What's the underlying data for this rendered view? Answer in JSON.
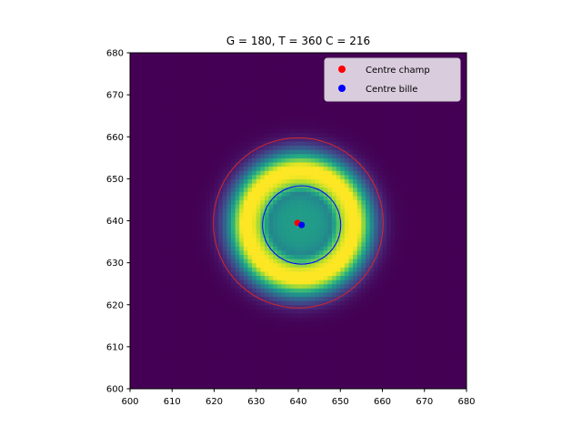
{
  "chart_data": {
    "type": "heatmap",
    "title": "G = 180, T = 360 C = 216",
    "xlabel": "",
    "ylabel": "",
    "xlim": [
      600,
      680
    ],
    "ylim": [
      600,
      680
    ],
    "x_ticks": [
      600,
      610,
      620,
      630,
      640,
      650,
      660,
      670,
      680
    ],
    "y_ticks": [
      600,
      610,
      620,
      630,
      640,
      650,
      660,
      670,
      680
    ],
    "grid": false,
    "colormap": "viridis",
    "intensity_field": {
      "description": "annular ring intensity",
      "center": [
        640.5,
        639.3
      ],
      "ring_radius": 12.0,
      "ring_width": 6.0,
      "core_level": 0.55,
      "background_level": 0.0
    },
    "circles": [
      {
        "name": "outer",
        "center": [
          640.0,
          639.5
        ],
        "radius": 20.2,
        "color": "#d62728"
      },
      {
        "name": "inner",
        "center": [
          640.8,
          639.0
        ],
        "radius": 9.3,
        "color": "#0000ff"
      }
    ],
    "points": [
      {
        "label": "Centre champ",
        "x": 639.8,
        "y": 639.5,
        "color": "#ff0000"
      },
      {
        "label": "Centre bille",
        "x": 640.8,
        "y": 639.0,
        "color": "#0000ff"
      }
    ],
    "legend": {
      "placement": "top-right",
      "entries": [
        "Centre champ",
        "Centre bille"
      ]
    }
  }
}
